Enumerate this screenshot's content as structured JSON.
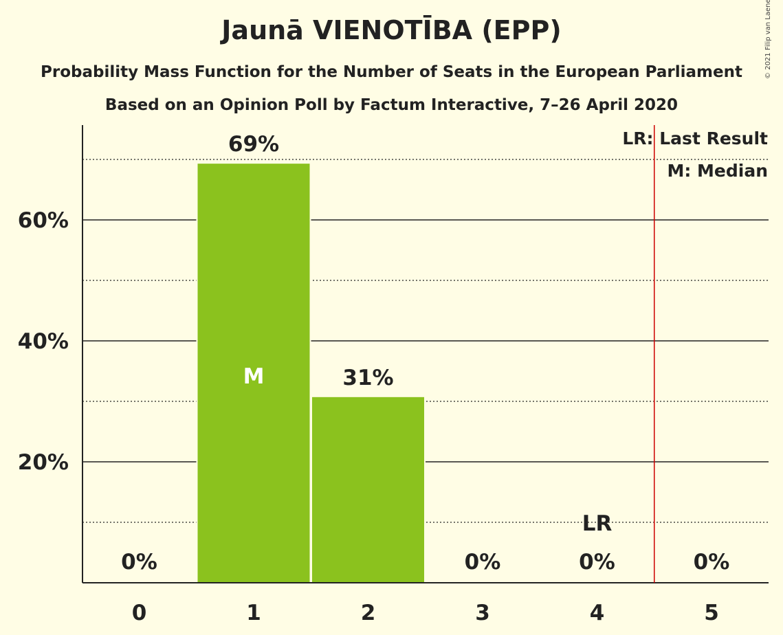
{
  "title": "Jaunā VIENOTĪBA (EPP)",
  "subtitle": "Probability Mass Function for the Number of Seats in the European Parliament",
  "subtitle2": "Based on an Opinion Poll by Factum Interactive, 7–26 April 2020",
  "copyright": "© 2021 Filip van Laenen",
  "legend": {
    "last_result": "LR: Last Result",
    "median": "M: Median"
  },
  "colors": {
    "bar": "#8bc21e",
    "last_result_line": "#cc0000",
    "background": "#fffde5"
  },
  "chart_data": {
    "type": "bar",
    "categories": [
      "0",
      "1",
      "2",
      "3",
      "4",
      "5"
    ],
    "values": [
      0,
      69.3,
      30.7,
      0,
      0,
      0
    ],
    "value_labels": [
      "0%",
      "69%",
      "31%",
      "0%",
      "0%",
      "0%"
    ],
    "ylim": [
      0,
      75
    ],
    "y_ticks": [
      20,
      40,
      60
    ],
    "y_tick_labels": [
      "20%",
      "40%",
      "60%"
    ],
    "y_minor_ticks": [
      10,
      30,
      50,
      70
    ],
    "median_seat": "1",
    "median_label": "M",
    "last_result_seat": "4",
    "last_result_label": "LR",
    "legend_position": "top-right",
    "grid": true
  }
}
